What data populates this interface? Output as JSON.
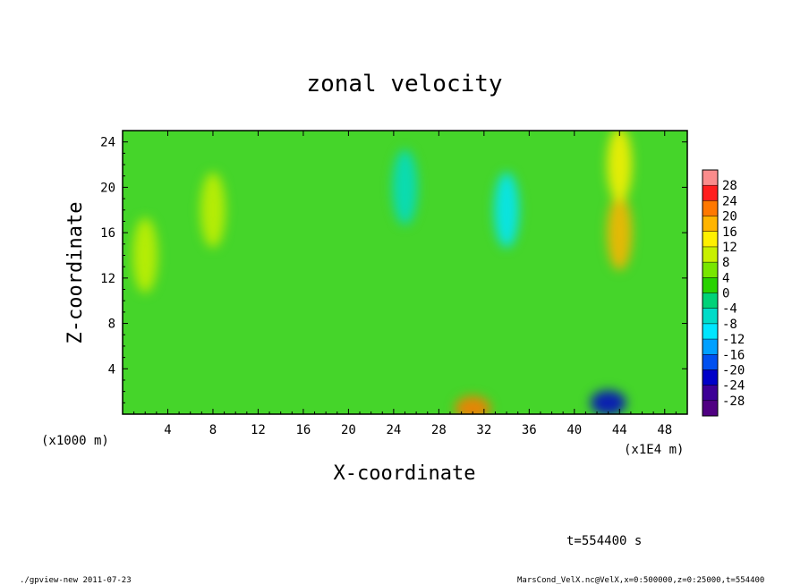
{
  "chart_data": {
    "type": "heatmap",
    "title": "zonal velocity",
    "xlabel": "X-coordinate",
    "ylabel": "Z-coordinate",
    "x_unit_note": "(x1E4 m)",
    "y_unit_note": "(x1000 m)",
    "xlim": [
      0,
      50
    ],
    "ylim": [
      0,
      25
    ],
    "x_ticks": [
      4,
      8,
      12,
      16,
      20,
      24,
      28,
      32,
      36,
      40,
      44,
      48
    ],
    "y_ticks": [
      4,
      8,
      12,
      16,
      20,
      24
    ],
    "colorbar_levels": [
      28,
      24,
      20,
      16,
      12,
      8,
      4,
      0,
      -4,
      -8,
      -12,
      -16,
      -20,
      -24,
      -28
    ],
    "colorbar_colors": [
      "#fa8c8c",
      "#ff1e1e",
      "#ff7800",
      "#ffb400",
      "#fff000",
      "#c8f000",
      "#78e600",
      "#28d200",
      "#00d278",
      "#00dcc8",
      "#00e6ff",
      "#00a0ff",
      "#0050f0",
      "#0000c8",
      "#3c0096",
      "#500082"
    ],
    "field_features": [
      {
        "x": 44,
        "z": 16,
        "value": 16,
        "note": "positive core"
      },
      {
        "x": 44,
        "z": 22,
        "value": 14,
        "note": "positive core"
      },
      {
        "x": 43,
        "z": 1,
        "value": -22,
        "note": "negative near surface"
      },
      {
        "x": 25,
        "z": 20,
        "value": -8,
        "note": "weak negative column"
      },
      {
        "x": 34,
        "z": 18,
        "value": -10,
        "note": "weak negative column"
      },
      {
        "x": 31,
        "z": 0.5,
        "value": 20,
        "note": "positive near surface"
      },
      {
        "x": 8,
        "z": 18,
        "value": 8,
        "note": "weak positive"
      },
      {
        "x": 2,
        "z": 14,
        "value": 8,
        "note": "weak positive"
      }
    ]
  },
  "header": {
    "time_label": "t=554400 s"
  },
  "footer": {
    "left_info": "./gpview-new   2011-07-23",
    "right_info": "MarsCond_VelX.nc@VelX,x=0:500000,z=0:25000,t=554400"
  }
}
